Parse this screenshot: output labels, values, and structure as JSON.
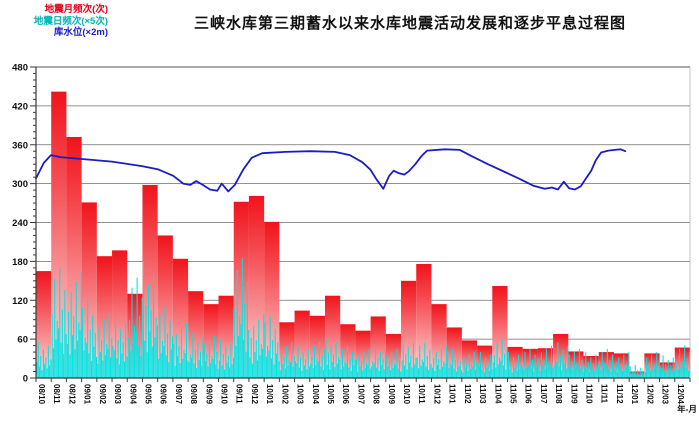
{
  "title": "三峡水库第三期蓄水以来水库地震活动发展和逐步平息过程图",
  "legend": {
    "items": [
      {
        "label": "地震月频次(次)",
        "color": "#e60018"
      },
      {
        "label": "地震日频次(×5次)",
        "color": "#00b4b4"
      },
      {
        "label": "库水位(×2m)",
        "color": "#1c1cc6"
      }
    ]
  },
  "axis": {
    "x_title": "年-月",
    "y_ticks": [
      0,
      60,
      120,
      180,
      240,
      300,
      360,
      420,
      480
    ]
  },
  "chart_data": {
    "type": "combo",
    "title": "三峡水库第三期蓄水以来水库地震活动发展和逐步平息过程图",
    "xlabel": "年-月",
    "ylabel": "",
    "ylim": [
      0,
      480
    ],
    "y_tick_step": 60,
    "y_minor_tick_step": 10,
    "grid": true,
    "legend_position": "top-left",
    "categories": [
      "08/10",
      "08/11",
      "08/12",
      "09/01",
      "09/02",
      "09/03",
      "09/04",
      "09/05",
      "09/06",
      "09/07",
      "09/08",
      "09/09",
      "09/10",
      "09/11",
      "09/12",
      "10/01",
      "10/02",
      "10/03",
      "10/04",
      "10/05",
      "10/06",
      "10/07",
      "10/08",
      "10/09",
      "10/10",
      "10/11",
      "10/12",
      "11/01",
      "11/02",
      "11/03",
      "11/04",
      "11/05",
      "11/06",
      "11/07",
      "11/08",
      "11/09",
      "11/10",
      "11/11",
      "11/12",
      "12/01",
      "12/02",
      "12/03",
      "12/04"
    ],
    "series": [
      {
        "name": "地震月频次(次)",
        "type": "bar",
        "color_top": "#f2131b",
        "color_mid": "#f4474d",
        "color_bottom": "#fcdfdf",
        "values": [
          165,
          442,
          372,
          271,
          188,
          197,
          130,
          298,
          220,
          184,
          134,
          114,
          127,
          272,
          281,
          241,
          86,
          104,
          96,
          127,
          83,
          73,
          95,
          68,
          150,
          176,
          114,
          78,
          58,
          50,
          142,
          48,
          45,
          46,
          68,
          41,
          34,
          40,
          38,
          10,
          38,
          24,
          47
        ]
      },
      {
        "name": "地震日频次(×5次)",
        "type": "spikes",
        "color": "#00e4e4",
        "monthly_max": [
          55,
          170,
          165,
          120,
          100,
          95,
          155,
          180,
          110,
          85,
          70,
          65,
          60,
          185,
          100,
          95,
          55,
          50,
          56,
          63,
          50,
          45,
          50,
          45,
          60,
          55,
          50,
          45,
          40,
          40,
          60,
          40,
          45,
          50,
          55,
          45,
          40,
          45,
          40,
          20,
          40,
          35,
          50
        ],
        "pattern": [
          0.45,
          1.0,
          0.32,
          0.62,
          0.22,
          0.8,
          0.4,
          0.58,
          0.27,
          0.9,
          0.35,
          0.52
        ]
      },
      {
        "name": "库水位(×2m)",
        "type": "line",
        "color": "#1c1cc6",
        "points": [
          [
            0.0,
            308
          ],
          [
            0.012,
            332
          ],
          [
            0.023,
            344
          ],
          [
            0.037,
            341
          ],
          [
            0.07,
            338
          ],
          [
            0.116,
            334
          ],
          [
            0.162,
            327
          ],
          [
            0.187,
            322
          ],
          [
            0.21,
            312
          ],
          [
            0.225,
            300
          ],
          [
            0.236,
            298
          ],
          [
            0.245,
            304
          ],
          [
            0.255,
            298
          ],
          [
            0.266,
            291
          ],
          [
            0.277,
            289
          ],
          [
            0.284,
            300
          ],
          [
            0.294,
            288
          ],
          [
            0.304,
            298
          ],
          [
            0.317,
            322
          ],
          [
            0.33,
            340
          ],
          [
            0.346,
            347
          ],
          [
            0.381,
            349
          ],
          [
            0.419,
            350
          ],
          [
            0.457,
            349
          ],
          [
            0.48,
            344
          ],
          [
            0.499,
            333
          ],
          [
            0.511,
            322
          ],
          [
            0.521,
            306
          ],
          [
            0.531,
            292
          ],
          [
            0.54,
            312
          ],
          [
            0.547,
            320
          ],
          [
            0.555,
            316
          ],
          [
            0.563,
            314
          ],
          [
            0.57,
            319
          ],
          [
            0.58,
            330
          ],
          [
            0.589,
            342
          ],
          [
            0.598,
            351
          ],
          [
            0.625,
            353
          ],
          [
            0.648,
            352
          ],
          [
            0.667,
            342
          ],
          [
            0.691,
            330
          ],
          [
            0.717,
            318
          ],
          [
            0.74,
            307
          ],
          [
            0.76,
            297
          ],
          [
            0.778,
            292
          ],
          [
            0.789,
            294
          ],
          [
            0.798,
            291
          ],
          [
            0.807,
            303
          ],
          [
            0.815,
            293
          ],
          [
            0.824,
            291
          ],
          [
            0.833,
            296
          ],
          [
            0.841,
            308
          ],
          [
            0.849,
            320
          ],
          [
            0.856,
            336
          ],
          [
            0.864,
            348
          ],
          [
            0.875,
            351
          ],
          [
            0.885,
            352
          ],
          [
            0.894,
            353
          ],
          [
            0.901,
            350
          ]
        ]
      }
    ]
  }
}
